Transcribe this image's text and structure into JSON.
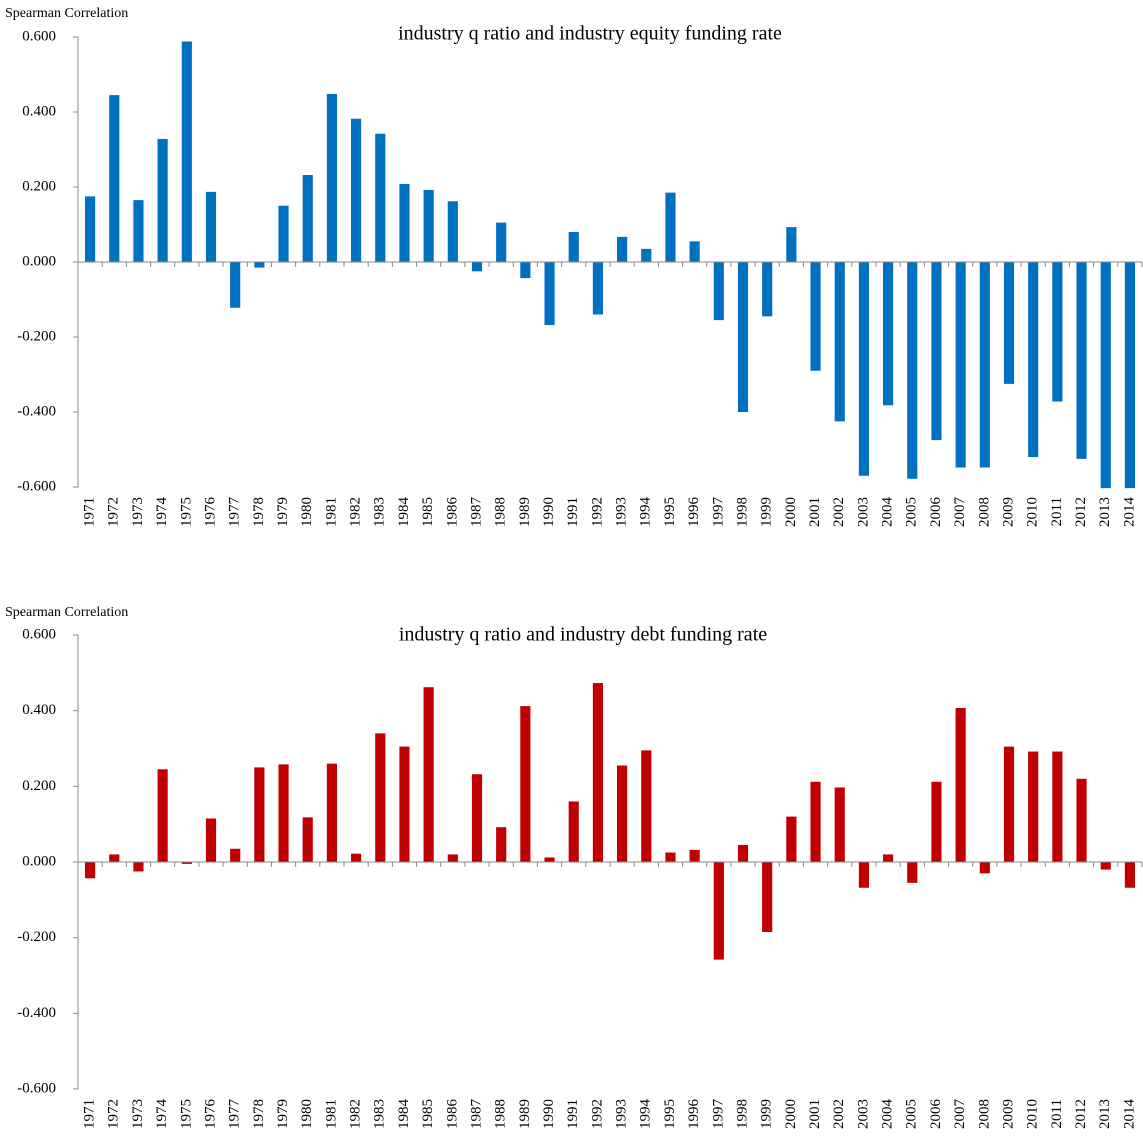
{
  "chart_data": [
    {
      "type": "bar",
      "title": "industry q ratio and industry equity funding rate",
      "y_label": "Spearman Correlation",
      "color": "#0070c0",
      "categories": [
        "1971",
        "1972",
        "1973",
        "1974",
        "1975",
        "1976",
        "1977",
        "1978",
        "1979",
        "1980",
        "1981",
        "1982",
        "1983",
        "1984",
        "1985",
        "1986",
        "1987",
        "1988",
        "1989",
        "1990",
        "1991",
        "1992",
        "1993",
        "1994",
        "1995",
        "1996",
        "1997",
        "1998",
        "1999",
        "2000",
        "2001",
        "2002",
        "2003",
        "2004",
        "2005",
        "2006",
        "2007",
        "2008",
        "2009",
        "2010",
        "2011",
        "2012",
        "2013",
        "2014"
      ],
      "values": [
        0.175,
        0.445,
        0.165,
        0.328,
        0.588,
        0.187,
        -0.122,
        -0.015,
        0.15,
        0.232,
        0.448,
        0.382,
        0.342,
        0.208,
        0.192,
        0.162,
        -0.025,
        0.105,
        -0.043,
        -0.168,
        0.08,
        -0.14,
        0.067,
        0.035,
        0.185,
        0.055,
        -0.155,
        -0.4,
        -0.145,
        0.093,
        -0.29,
        -0.425,
        -0.57,
        -0.382,
        -0.578,
        -0.475,
        -0.548,
        -0.548,
        -0.325,
        -0.52,
        -0.372,
        -0.525,
        -0.603,
        -0.603
      ],
      "ylim": [
        -0.6,
        0.6
      ],
      "yticks": [
        {
          "value": -0.6,
          "label": "-0.600"
        },
        {
          "value": -0.4,
          "label": "-0.400"
        },
        {
          "value": -0.2,
          "label": "-0.200"
        },
        {
          "value": 0,
          "label": "0.000"
        },
        {
          "value": 0.2,
          "label": "0.200"
        },
        {
          "value": 0.4,
          "label": "0.400"
        },
        {
          "value": 0.6,
          "label": "0.600"
        }
      ]
    },
    {
      "type": "bar",
      "title": "industry q ratio and industry debt funding rate",
      "y_label": "Spearman Correlation",
      "color": "#c00000",
      "categories": [
        "1971",
        "1972",
        "1973",
        "1974",
        "1975",
        "1976",
        "1977",
        "1978",
        "1979",
        "1980",
        "1981",
        "1982",
        "1983",
        "1984",
        "1985",
        "1986",
        "1987",
        "1988",
        "1989",
        "1990",
        "1991",
        "1992",
        "1993",
        "1994",
        "1995",
        "1996",
        "1997",
        "1998",
        "1999",
        "2000",
        "2001",
        "2002",
        "2003",
        "2004",
        "2005",
        "2006",
        "2007",
        "2008",
        "2009",
        "2010",
        "2011",
        "2012",
        "2013",
        "2014"
      ],
      "values": [
        -0.043,
        0.02,
        -0.025,
        0.245,
        -0.005,
        0.115,
        0.035,
        0.25,
        0.258,
        0.118,
        0.26,
        0.022,
        0.34,
        0.305,
        0.462,
        0.02,
        0.232,
        0.092,
        0.412,
        0.012,
        0.16,
        0.473,
        0.255,
        0.295,
        0.025,
        0.032,
        -0.258,
        0.045,
        -0.185,
        0.12,
        0.212,
        0.197,
        -0.068,
        0.02,
        -0.055,
        0.212,
        0.407,
        -0.03,
        0.305,
        0.292,
        0.292,
        0.22,
        -0.02,
        -0.068
      ],
      "ylim": [
        -0.6,
        0.6
      ],
      "yticks": [
        {
          "value": -0.6,
          "label": "-0.600"
        },
        {
          "value": -0.4,
          "label": "-0.400"
        },
        {
          "value": -0.2,
          "label": "-0.200"
        },
        {
          "value": 0,
          "label": "0.000"
        },
        {
          "value": 0.2,
          "label": "0.200"
        },
        {
          "value": 0.4,
          "label": "0.400"
        },
        {
          "value": 0.6,
          "label": "0.600"
        }
      ]
    }
  ]
}
